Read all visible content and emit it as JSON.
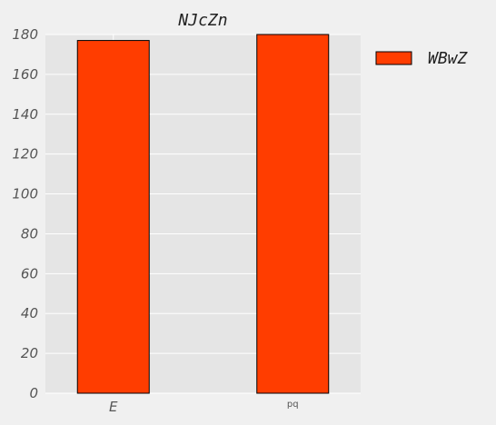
{
  "chart_data": {
    "type": "bar",
    "title": "NJcZn",
    "categories": [
      "E",
      "pq"
    ],
    "series": [
      {
        "name": "WBwZ",
        "values": [
          177,
          180
        ],
        "color": "#ff3d00"
      }
    ],
    "xlabel": "",
    "ylabel": "",
    "ylim": [
      0,
      180
    ],
    "yticks": [
      0,
      20,
      40,
      60,
      80,
      100,
      120,
      140,
      160,
      180
    ],
    "grid": true,
    "legend_position": "outside-top-right"
  },
  "colors": {
    "background": "#f0f0f0",
    "plot_background": "#e5e5e5",
    "grid": "#ffffff",
    "bar_edge": "#000000"
  }
}
